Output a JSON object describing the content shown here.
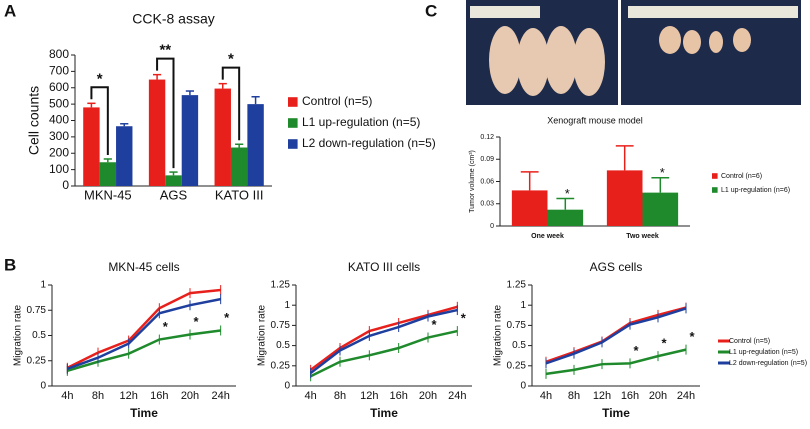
{
  "panel_labels": [
    "A",
    "B",
    "C"
  ],
  "chart_data": [
    {
      "type": "bar",
      "title": "CCK-8 assay",
      "ylabel": "Cell counts",
      "categories": [
        "MKN-45",
        "AGS",
        "KATO III"
      ],
      "series": [
        {
          "name": "Control (n=5)",
          "color": "#e8201c",
          "values": [
            480,
            650,
            595
          ],
          "errors": [
            25,
            30,
            30
          ]
        },
        {
          "name": "L1 up-regulation (n=5)",
          "color": "#1f8a2c",
          "values": [
            145,
            65,
            235
          ],
          "errors": [
            20,
            20,
            20
          ]
        },
        {
          "name": "L2 down-regulation (n=5)",
          "color": "#1f3f9e",
          "values": [
            365,
            555,
            500
          ],
          "errors": [
            15,
            25,
            45
          ]
        }
      ],
      "ylim": [
        0,
        800
      ],
      "yticks": [
        0,
        100,
        200,
        300,
        400,
        500,
        600,
        700,
        800
      ],
      "annotations": [
        "*",
        "**",
        "*"
      ]
    },
    {
      "type": "line",
      "title": "MKN-45 cells",
      "xlabel": "Time",
      "ylabel": "Migration rate",
      "categories": [
        "4h",
        "8h",
        "12h",
        "16h",
        "20h",
        "24h"
      ],
      "series": [
        {
          "color": "#e8201c",
          "values": [
            0.18,
            0.33,
            0.45,
            0.77,
            0.92,
            0.95
          ]
        },
        {
          "color": "#1f8a2c",
          "values": [
            0.15,
            0.24,
            0.32,
            0.46,
            0.51,
            0.55
          ]
        },
        {
          "color": "#1f3f9e",
          "values": [
            0.17,
            0.28,
            0.42,
            0.72,
            0.8,
            0.86
          ]
        }
      ],
      "ylim": [
        0,
        1
      ],
      "yticks": [
        0,
        0.25,
        0.5,
        0.75,
        1
      ],
      "annotations": [
        "*",
        "*",
        "*"
      ]
    },
    {
      "type": "line",
      "title": "KATO III cells",
      "xlabel": "Time",
      "ylabel": "Migration rate",
      "categories": [
        "4h",
        "8h",
        "12h",
        "16h",
        "20h",
        "24h"
      ],
      "series": [
        {
          "color": "#e8201c",
          "values": [
            0.2,
            0.47,
            0.68,
            0.78,
            0.88,
            0.98
          ]
        },
        {
          "color": "#1f8a2c",
          "values": [
            0.12,
            0.3,
            0.38,
            0.47,
            0.6,
            0.68
          ]
        },
        {
          "color": "#1f3f9e",
          "values": [
            0.16,
            0.44,
            0.62,
            0.73,
            0.86,
            0.94
          ]
        }
      ],
      "ylim": [
        0,
        1.25
      ],
      "yticks": [
        0,
        0.25,
        0.5,
        0.75,
        1,
        1.25
      ],
      "annotations": [
        "*",
        "*"
      ]
    },
    {
      "type": "line",
      "title": "AGS cells",
      "xlabel": "Time",
      "ylabel": "Migration rate",
      "categories": [
        "4h",
        "8h",
        "12h",
        "16h",
        "20h",
        "24h"
      ],
      "series": [
        {
          "name": "Control (n=5)",
          "color": "#e8201c",
          "values": [
            0.3,
            0.42,
            0.55,
            0.78,
            0.88,
            0.97
          ]
        },
        {
          "name": "L1 up-regulation (n=5)",
          "color": "#1f8a2c",
          "values": [
            0.15,
            0.2,
            0.27,
            0.28,
            0.37,
            0.45
          ]
        },
        {
          "name": "L2 down-regulation (n=5)",
          "color": "#1f3f9e",
          "values": [
            0.28,
            0.4,
            0.54,
            0.76,
            0.85,
            0.96
          ]
        }
      ],
      "ylim": [
        0,
        1.25
      ],
      "yticks": [
        0,
        0.25,
        0.5,
        0.75,
        1,
        1.25
      ],
      "annotations": [
        "*",
        "*",
        "*"
      ]
    },
    {
      "type": "bar",
      "title": "Xenograft mouse model",
      "ylabel": "Tumor volume (cm³)",
      "categories": [
        "One week",
        "Two week"
      ],
      "series": [
        {
          "name": "Control (n=6)",
          "color": "#e8201c",
          "values": [
            0.048,
            0.075
          ],
          "errors": [
            0.025,
            0.033
          ]
        },
        {
          "name": "L1 up-regulation (n=6)",
          "color": "#1f8a2c",
          "values": [
            0.022,
            0.045
          ],
          "errors": [
            0.015,
            0.02
          ]
        }
      ],
      "ylim": [
        0,
        0.12
      ],
      "yticks": [
        0,
        0.03,
        0.06,
        0.09,
        0.12
      ],
      "annotations": [
        "*",
        "*"
      ]
    }
  ]
}
